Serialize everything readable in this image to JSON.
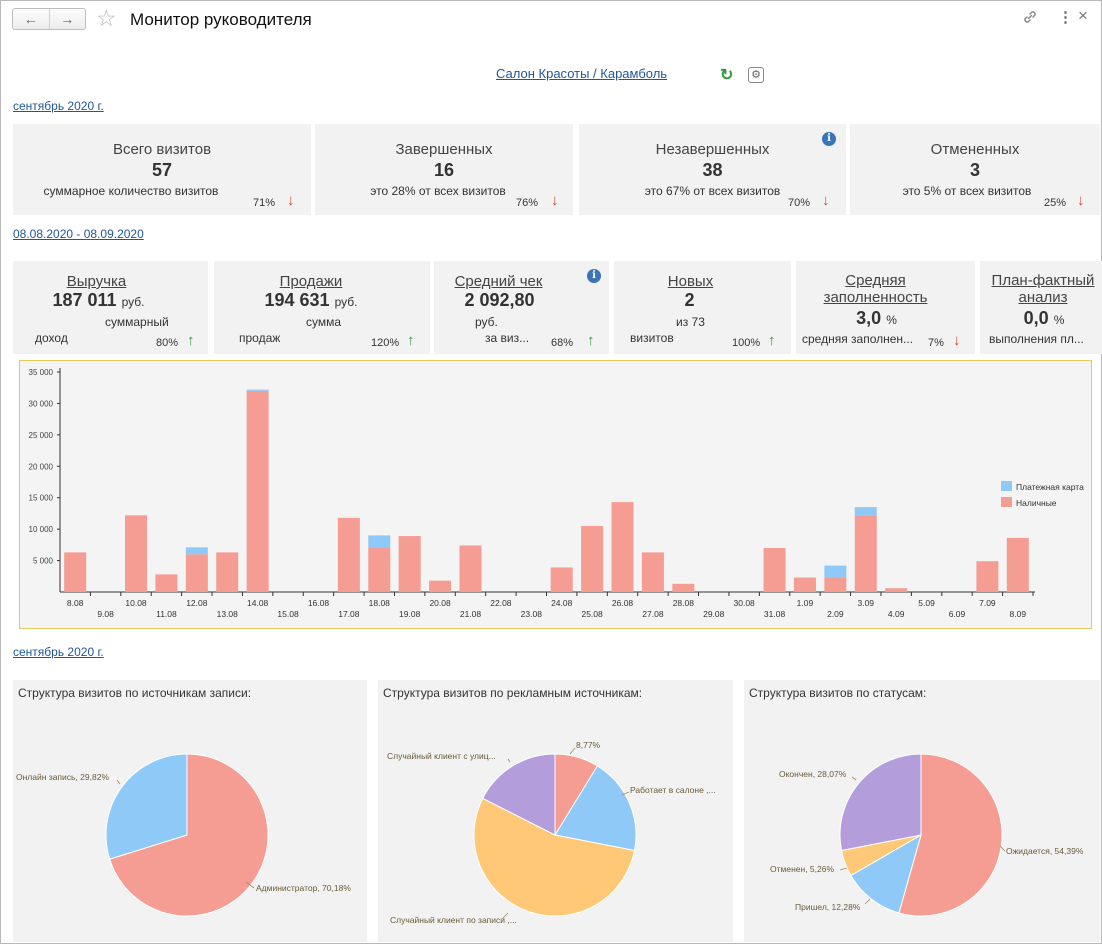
{
  "header": {
    "title": "Монитор руководителя",
    "back_icon": "←",
    "forward_icon": "→",
    "star_icon": "☆",
    "link_icon": "🔗",
    "more_icon": "⋮",
    "close_icon": "×"
  },
  "company": {
    "label": "Салон Красоты / Карамболь",
    "refresh_icon": "↻",
    "settings_icon": "⚙"
  },
  "period1": "сентябрь 2020 г.",
  "visits": [
    {
      "title": "Всего визитов",
      "value": "57",
      "sub": "суммарное количество визитов",
      "pct": "71%",
      "dir": "down"
    },
    {
      "title": "Завершенных",
      "value": "16",
      "sub": "это 28% от всех визитов",
      "pct": "76%",
      "dir": "down"
    },
    {
      "title": "Незавершенных",
      "value": "38",
      "sub": "это 67% от всех визитов",
      "pct": "70%",
      "dir": "down",
      "info": "i"
    },
    {
      "title": "Отмененных",
      "value": "3",
      "sub": "это 5% от всех визитов",
      "pct": "25%",
      "dir": "down"
    }
  ],
  "period2": "08.08.2020 - 08.09.2020",
  "metrics": [
    {
      "title1": "Выручка",
      "title2": "",
      "value": "187 011",
      "unit": "руб.",
      "sub1": "суммарный",
      "sub2": "доход",
      "pct": "80%",
      "dir": "up"
    },
    {
      "title1": "Продажи",
      "title2": "",
      "value": "194 631",
      "unit": "руб.",
      "sub1": "сумма",
      "sub2": "продаж",
      "pct": "120%",
      "dir": "up"
    },
    {
      "title1": "Средний чек",
      "title2": "",
      "value": "2 092,80",
      "unit": "",
      "sub1": "руб.",
      "sub2": "за виз...",
      "pct": "68%",
      "dir": "up",
      "info": "i"
    },
    {
      "title1": "Новых",
      "title2": "",
      "value": "2",
      "unit": "",
      "sub1": "из 73",
      "sub2": "визитов",
      "pct": "100%",
      "dir": "up"
    },
    {
      "title1": "Средняя",
      "title2": "заполненность",
      "value": "3,0",
      "unit": "%",
      "sub1": "",
      "sub2": "средняя заполнен...",
      "pct": "7%",
      "dir": "down"
    },
    {
      "title1": "План-фактный",
      "title2": "анализ",
      "value": "0,0",
      "unit": "%",
      "sub1": "",
      "sub2": "выполнения пл...",
      "pct": "",
      "dir": ""
    }
  ],
  "chart_data": {
    "type": "bar",
    "stacked": true,
    "categories": [
      "8.08",
      "9.08",
      "10.08",
      "11.08",
      "12.08",
      "13.08",
      "14.08",
      "15.08",
      "16.08",
      "17.08",
      "18.08",
      "19.08",
      "20.08",
      "21.08",
      "22.08",
      "23.08",
      "24.08",
      "25.08",
      "26.08",
      "27.08",
      "28.08",
      "29.08",
      "30.08",
      "31.08",
      "1.09",
      "2.09",
      "3.09",
      "4.09",
      "5.09",
      "6.09",
      "7.09",
      "8.09"
    ],
    "series": [
      {
        "name": "Наличные",
        "color": "#f59c93",
        "values": [
          6300,
          0,
          12200,
          2800,
          6000,
          6300,
          32000,
          0,
          0,
          11800,
          7000,
          8900,
          1800,
          7400,
          0,
          0,
          3900,
          10500,
          14300,
          6300,
          1300,
          0,
          0,
          7000,
          2300,
          2300,
          12200,
          600,
          0,
          0,
          4900,
          8600
        ]
      },
      {
        "name": "Платежная карта",
        "color": "#8fc9f7",
        "values": [
          0,
          0,
          0,
          0,
          1100,
          0,
          200,
          0,
          0,
          0,
          2000,
          0,
          0,
          0,
          0,
          0,
          0,
          0,
          0,
          0,
          0,
          0,
          0,
          0,
          0,
          1900,
          1300,
          0,
          0,
          0,
          0,
          0
        ]
      }
    ],
    "ylim": [
      0,
      35000
    ],
    "yticks": [
      "5 000",
      "10 000",
      "15 000",
      "20 000",
      "25 000",
      "30 000",
      "35 000"
    ],
    "legend": "right",
    "grid": false
  },
  "period3": "сентябрь 2020 г.",
  "pies": [
    {
      "title": "Структура визитов по источникам записи:",
      "slices": [
        {
          "label": "Администратор, 70,18%",
          "value": 70.18,
          "color": "#f59c93"
        },
        {
          "label": "Онлайн запись, 29,82%",
          "value": 29.82,
          "color": "#8fc9f7"
        }
      ]
    },
    {
      "title": "Структура визитов по рекламным источникам:",
      "slices": [
        {
          "label": "8,77%",
          "value": 8.77,
          "color": "#f59c93"
        },
        {
          "label": "Работает в салоне ,...",
          "value": 19.3,
          "color": "#8fc9f7"
        },
        {
          "label": "Случайный клиент по записи ,...",
          "value": 54.4,
          "color": "#ffc877"
        },
        {
          "label": "Случайный клиент с улиц...",
          "value": 17.53,
          "color": "#b39ddb"
        }
      ]
    },
    {
      "title": "Структура визитов по статусам:",
      "slices": [
        {
          "label": "Ожидается, 54,39%",
          "value": 54.39,
          "color": "#f59c93"
        },
        {
          "label": "Пришел, 12,28%",
          "value": 12.28,
          "color": "#8fc9f7"
        },
        {
          "label": "Отменен, 5,26%",
          "value": 5.26,
          "color": "#ffc877"
        },
        {
          "label": "Окончен, 28,07%",
          "value": 28.07,
          "color": "#b39ddb"
        }
      ]
    }
  ]
}
